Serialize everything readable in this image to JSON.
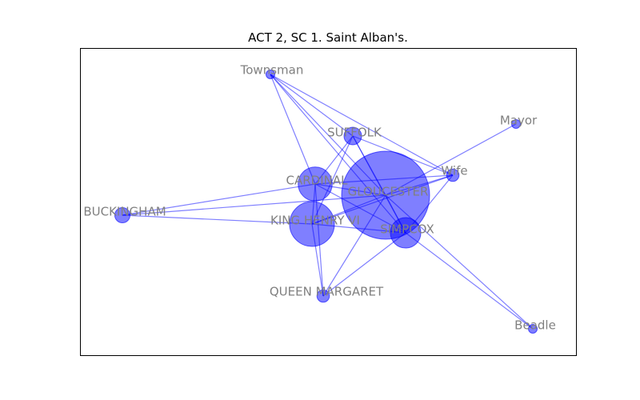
{
  "title": "ACT 2, SC 1. Saint Alban's.",
  "colors": {
    "node": "#0000ff",
    "edge": "#0000ff",
    "label": "#808080",
    "frame": "#000000"
  },
  "nodes": [
    {
      "id": "townsman",
      "label": "Townsman",
      "weight": 1
    },
    {
      "id": "mayor",
      "label": "Mayor",
      "weight": 1
    },
    {
      "id": "suffolk",
      "label": "SUFFOLK",
      "weight": 4
    },
    {
      "id": "wife",
      "label": "Wife",
      "weight": 2
    },
    {
      "id": "cardinal",
      "label": "CARDINAL",
      "weight": 15
    },
    {
      "id": "gloucester",
      "label": "GLOUCESTER",
      "weight": 100
    },
    {
      "id": "buckingham",
      "label": "BUCKINGHAM",
      "weight": 3
    },
    {
      "id": "king_henry_vi",
      "label": "KING HENRY VI",
      "weight": 26
    },
    {
      "id": "simpcox",
      "label": "SIMPCOX",
      "weight": 12
    },
    {
      "id": "queen_margaret",
      "label": "QUEEN MARGARET",
      "weight": 2
    },
    {
      "id": "beadle",
      "label": "Beadle",
      "weight": 1
    }
  ],
  "edges": [
    [
      "townsman",
      "suffolk"
    ],
    [
      "townsman",
      "gloucester"
    ],
    [
      "townsman",
      "wife"
    ],
    [
      "townsman",
      "cardinal"
    ],
    [
      "townsman",
      "simpcox"
    ],
    [
      "suffolk",
      "gloucester"
    ],
    [
      "suffolk",
      "cardinal"
    ],
    [
      "suffolk",
      "king_henry_vi"
    ],
    [
      "suffolk",
      "simpcox"
    ],
    [
      "suffolk",
      "wife"
    ],
    [
      "mayor",
      "gloucester"
    ],
    [
      "wife",
      "gloucester"
    ],
    [
      "wife",
      "cardinal"
    ],
    [
      "wife",
      "king_henry_vi"
    ],
    [
      "wife",
      "simpcox"
    ],
    [
      "cardinal",
      "gloucester"
    ],
    [
      "cardinal",
      "buckingham"
    ],
    [
      "cardinal",
      "king_henry_vi"
    ],
    [
      "cardinal",
      "simpcox"
    ],
    [
      "cardinal",
      "queen_margaret"
    ],
    [
      "gloucester",
      "king_henry_vi"
    ],
    [
      "gloucester",
      "simpcox"
    ],
    [
      "gloucester",
      "queen_margaret"
    ],
    [
      "gloucester",
      "beadle"
    ],
    [
      "gloucester",
      "buckingham"
    ],
    [
      "buckingham",
      "king_henry_vi"
    ],
    [
      "king_henry_vi",
      "simpcox"
    ],
    [
      "king_henry_vi",
      "queen_margaret"
    ],
    [
      "simpcox",
      "queen_margaret"
    ],
    [
      "simpcox",
      "beadle"
    ]
  ]
}
